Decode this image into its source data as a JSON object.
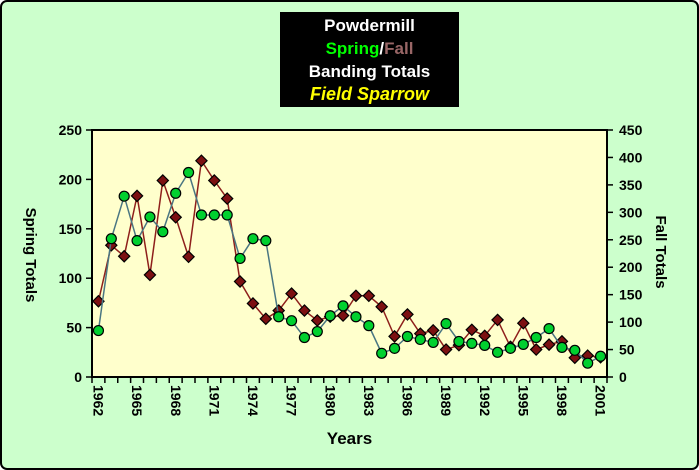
{
  "window": {
    "background": "#ccffcc",
    "plot_background": "#ffffcc",
    "border_color": "#000000"
  },
  "title_box": {
    "line1": "Powdermill",
    "line2_spring": "Spring",
    "line2_slash": "/",
    "line2_fall": "Fall",
    "line3": "Banding Totals",
    "line4": "Field Sparrow",
    "colors": {
      "background": "#000000",
      "line1": "#ffffff",
      "spring": "#00ff00",
      "slash": "#ffffff",
      "fall": "#996666",
      "line3": "#ffffff",
      "line4": "#ffff00"
    }
  },
  "axes": {
    "left_title": "Spring Totals",
    "right_title": "Fall Totals",
    "x_title": "Years",
    "left_ticks": [
      0,
      50,
      100,
      150,
      200,
      250
    ],
    "right_ticks": [
      0,
      50,
      100,
      150,
      200,
      250,
      300,
      350,
      400,
      450
    ],
    "x_tick_labels": [
      "1962",
      "1965",
      "1968",
      "1971",
      "1974",
      "1977",
      "1980",
      "1983",
      "1986",
      "1989",
      "1992",
      "1995",
      "1998",
      "2001"
    ],
    "text_color": "#000000"
  },
  "chart_data": {
    "type": "line",
    "title": "Powdermill Spring/Fall Banding Totals - Field Sparrow",
    "xlabel": "Years",
    "left_ylabel": "Spring Totals",
    "right_ylabel": "Fall Totals",
    "left_ylim": [
      0,
      250
    ],
    "right_ylim": [
      0,
      450
    ],
    "grid": false,
    "legend_position": "in-title",
    "x": [
      1962,
      1963,
      1964,
      1965,
      1966,
      1967,
      1968,
      1969,
      1970,
      1971,
      1972,
      1973,
      1974,
      1975,
      1976,
      1977,
      1978,
      1979,
      1980,
      1981,
      1982,
      1983,
      1984,
      1985,
      1986,
      1987,
      1988,
      1989,
      1990,
      1991,
      1992,
      1993,
      1994,
      1995,
      1996,
      1997,
      1998,
      1999,
      2000,
      2001
    ],
    "series": [
      {
        "name": "Fall",
        "axis": "right",
        "marker": "diamond",
        "line_color": "#8e1f1b",
        "marker_color": "#7c1012",
        "values": [
          138,
          240,
          220,
          330,
          186,
          358,
          291,
          219,
          394,
          358,
          325,
          174,
          134,
          106,
          121,
          152,
          121,
          103,
          110,
          112,
          148,
          148,
          128,
          74,
          114,
          79,
          85,
          50,
          58,
          86,
          75,
          104,
          55,
          98,
          50,
          59,
          65,
          35,
          39,
          36
        ]
      },
      {
        "name": "Spring",
        "axis": "left",
        "marker": "circle",
        "line_color": "#4a7682",
        "marker_color": "#00d02f",
        "values": [
          47,
          140,
          183,
          138,
          162,
          147,
          186,
          207,
          164,
          164,
          164,
          120,
          140,
          138,
          61,
          57,
          40,
          46,
          62,
          72,
          61,
          52,
          24,
          29,
          41,
          38,
          35,
          54,
          36,
          34,
          32,
          25,
          29,
          33,
          40,
          49,
          30,
          27,
          14,
          21
        ]
      }
    ]
  }
}
